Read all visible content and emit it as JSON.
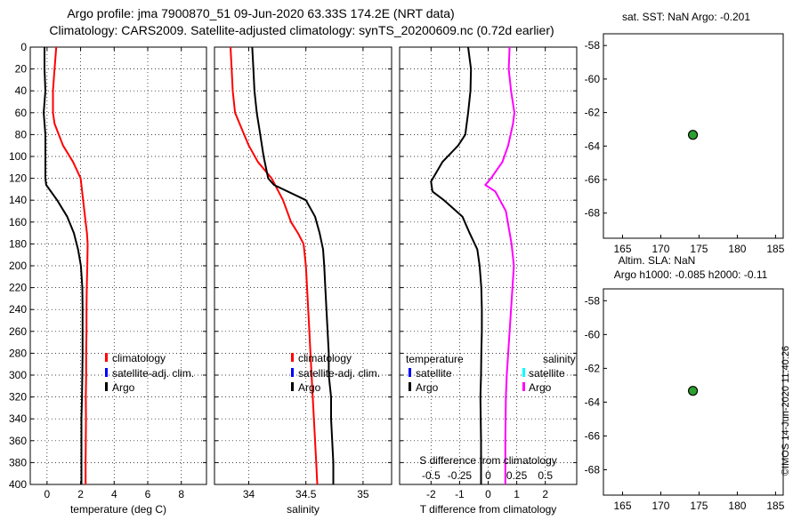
{
  "header": {
    "line1": "Argo profile: jma 7900870_51 09-Jun-2020 63.33S 174.2E (NRT data)",
    "line2": "Climatology: CARS2009. Satellite-adjusted climatology: synTS_20200609.nc (0.72d earlier)"
  },
  "stamp": "©IMOS 14-Jun-2020 11:40:26",
  "colors": {
    "red": "#ff0000",
    "black": "#000000",
    "blue": "#0000ff",
    "cyan": "#00ffff",
    "magenta": "#ff00ff",
    "dot": "#2ca02c"
  },
  "chart_data": [
    {
      "type": "line",
      "id": "temperature",
      "xlabel": "temperature (deg C)",
      "xlim": [
        -1,
        9.5
      ],
      "ylim": [
        0,
        400
      ],
      "x_ticks": [
        0,
        2,
        4,
        6,
        8
      ],
      "x_tick_labels": [
        "0",
        "2",
        "4",
        "6",
        "8"
      ],
      "y_ticks": [
        0,
        20,
        40,
        60,
        80,
        100,
        120,
        140,
        160,
        180,
        200,
        220,
        240,
        260,
        280,
        300,
        320,
        340,
        360,
        380,
        400
      ],
      "y_tick_labels": [
        "0",
        "20",
        "40",
        "60",
        "80",
        "100",
        "120",
        "140",
        "160",
        "180",
        "200",
        "220",
        "240",
        "260",
        "280",
        "300",
        "320",
        "340",
        "360",
        "380",
        "400"
      ],
      "grid": true,
      "legend_entries": [
        "climatology",
        "satellite-adj. clim.",
        "Argo"
      ],
      "series": [
        {
          "name": "climatology",
          "color": "#ff0000",
          "x": [
            0.55,
            0.45,
            0.35,
            0.35,
            0.45,
            0.95,
            1.55,
            2.0,
            2.15,
            2.3,
            2.38,
            2.42,
            2.4,
            2.37,
            2.35,
            2.35,
            2.33,
            2.33,
            2.31,
            2.32,
            2.3,
            2.3
          ],
          "y": [
            0,
            20,
            40,
            60,
            70,
            90,
            105,
            120,
            140,
            160,
            170,
            180,
            200,
            220,
            240,
            260,
            280,
            300,
            320,
            340,
            380,
            400
          ]
        },
        {
          "name": "Argo",
          "color": "#000000",
          "x": [
            -0.15,
            -0.15,
            -0.1,
            -0.2,
            -0.1,
            -0.1,
            -0.1,
            -0.05,
            0.6,
            1.2,
            1.6,
            1.85,
            2.02,
            2.1,
            2.12,
            2.12,
            2.12,
            2.1,
            2.08,
            2.05,
            2.05,
            2.05
          ],
          "y": [
            0,
            20,
            40,
            60,
            80,
            100,
            120,
            126,
            140,
            155,
            170,
            185,
            200,
            220,
            240,
            260,
            280,
            300,
            320,
            340,
            380,
            400
          ]
        }
      ]
    },
    {
      "type": "line",
      "id": "salinity",
      "xlabel": "salinity",
      "xlim": [
        33.7,
        35.25
      ],
      "ylim": [
        0,
        400
      ],
      "x_ticks": [
        34,
        34.5,
        35
      ],
      "x_tick_labels": [
        "34",
        "34.5",
        "35"
      ],
      "grid": true,
      "legend_entries": [
        "climatology",
        "satellite-adj. clim.",
        "Argo"
      ],
      "series": [
        {
          "name": "climatology",
          "color": "#ff0000",
          "x": [
            33.84,
            33.85,
            33.86,
            33.88,
            33.92,
            34.0,
            34.08,
            34.2,
            34.3,
            34.37,
            34.43,
            34.48,
            34.5,
            34.51,
            34.52,
            34.53,
            34.54,
            34.55,
            34.56,
            34.57,
            34.59,
            34.6
          ],
          "y": [
            0,
            20,
            40,
            60,
            70,
            90,
            105,
            120,
            140,
            160,
            170,
            180,
            200,
            220,
            240,
            260,
            280,
            300,
            320,
            340,
            380,
            400
          ]
        },
        {
          "name": "Argo",
          "color": "#000000",
          "x": [
            34.03,
            34.04,
            34.05,
            34.07,
            34.1,
            34.13,
            34.17,
            34.22,
            34.5,
            34.58,
            34.62,
            34.65,
            34.66,
            34.67,
            34.68,
            34.69,
            34.7,
            34.7,
            34.72,
            34.72,
            34.74,
            34.74
          ],
          "y": [
            0,
            20,
            40,
            60,
            80,
            100,
            120,
            126,
            140,
            155,
            170,
            185,
            200,
            220,
            240,
            260,
            280,
            300,
            320,
            340,
            380,
            400
          ]
        }
      ]
    },
    {
      "type": "line",
      "id": "difference",
      "xlabel": "T difference from climatology",
      "xlabel_top": "S difference from climatology",
      "xlim": [
        -3.1,
        3.1
      ],
      "ylim": [
        0,
        400
      ],
      "x_ticks": [
        -2,
        -1,
        0,
        1,
        2
      ],
      "x_tick_labels": [
        "-2",
        "-1",
        "0",
        "1",
        "2"
      ],
      "s_ticks": [
        -0.5,
        -0.25,
        0,
        0.25,
        0.5
      ],
      "s_tick_labels": [
        "-0.5",
        "-0.25",
        "0",
        "0.25",
        "0.5"
      ],
      "s_scale": 4,
      "grid": true,
      "legend_temperature": {
        "title": "temperature",
        "entries": [
          "satellite",
          "Argo"
        ]
      },
      "legend_salinity": {
        "title": "salinity",
        "entries": [
          "satellite",
          "Argo"
        ]
      },
      "series": [
        {
          "name": "T difference Argo",
          "color": "#000000",
          "x": [
            -0.7,
            -0.6,
            -0.62,
            -0.7,
            -0.8,
            -1.05,
            -1.6,
            -2.0,
            -1.95,
            -1.55,
            -0.9,
            -0.65,
            -0.38,
            -0.3,
            -0.24,
            -0.22,
            -0.22,
            -0.24,
            -0.25,
            -0.27,
            -0.25,
            -0.25
          ],
          "y": [
            0,
            20,
            40,
            60,
            80,
            90,
            105,
            123,
            132,
            140,
            155,
            170,
            185,
            200,
            220,
            240,
            260,
            280,
            300,
            320,
            360,
            400
          ]
        },
        {
          "name": "S difference Argo",
          "color": "#ff00ff",
          "x": [
            0.75,
            0.72,
            0.8,
            0.92,
            0.87,
            0.7,
            0.5,
            0.1,
            -0.1,
            0.25,
            0.62,
            0.72,
            0.82,
            0.9,
            0.85,
            0.8,
            0.75,
            0.7,
            0.65,
            0.62,
            0.6,
            0.6
          ],
          "y": [
            0,
            20,
            40,
            60,
            70,
            90,
            105,
            120,
            126,
            132,
            150,
            165,
            180,
            200,
            220,
            240,
            260,
            280,
            300,
            320,
            360,
            400
          ]
        }
      ]
    },
    {
      "type": "scatter",
      "id": "map-sst",
      "title": "sat. SST: NaN Argo: -0.201",
      "xlim": [
        162.5,
        186
      ],
      "ylim": [
        -69.5,
        -57.3
      ],
      "x_ticks": [
        165,
        170,
        175,
        180,
        185
      ],
      "x_tick_labels": [
        "165",
        "170",
        "175",
        "180",
        "185"
      ],
      "y_ticks": [
        -58,
        -60,
        -62,
        -64,
        -66,
        -68
      ],
      "y_tick_labels": [
        "-58",
        "-60",
        "-62",
        "-64",
        "-66",
        "-68"
      ],
      "points": [
        {
          "x": 174.2,
          "y": -63.33
        }
      ]
    },
    {
      "type": "scatter",
      "id": "map-sla",
      "title": "Altim. SLA: NaN",
      "subtitle": "Argo h1000: -0.085 h2000: -0.11",
      "xlim": [
        162.5,
        186
      ],
      "ylim": [
        -69.5,
        -57.3
      ],
      "x_ticks": [
        165,
        170,
        175,
        180,
        185
      ],
      "x_tick_labels": [
        "165",
        "170",
        "175",
        "180",
        "185"
      ],
      "y_ticks": [
        -58,
        -60,
        -62,
        -64,
        -66,
        -68
      ],
      "y_tick_labels": [
        "-58",
        "-60",
        "-62",
        "-64",
        "-66",
        "-68"
      ],
      "points": [
        {
          "x": 174.2,
          "y": -63.33
        }
      ]
    }
  ]
}
